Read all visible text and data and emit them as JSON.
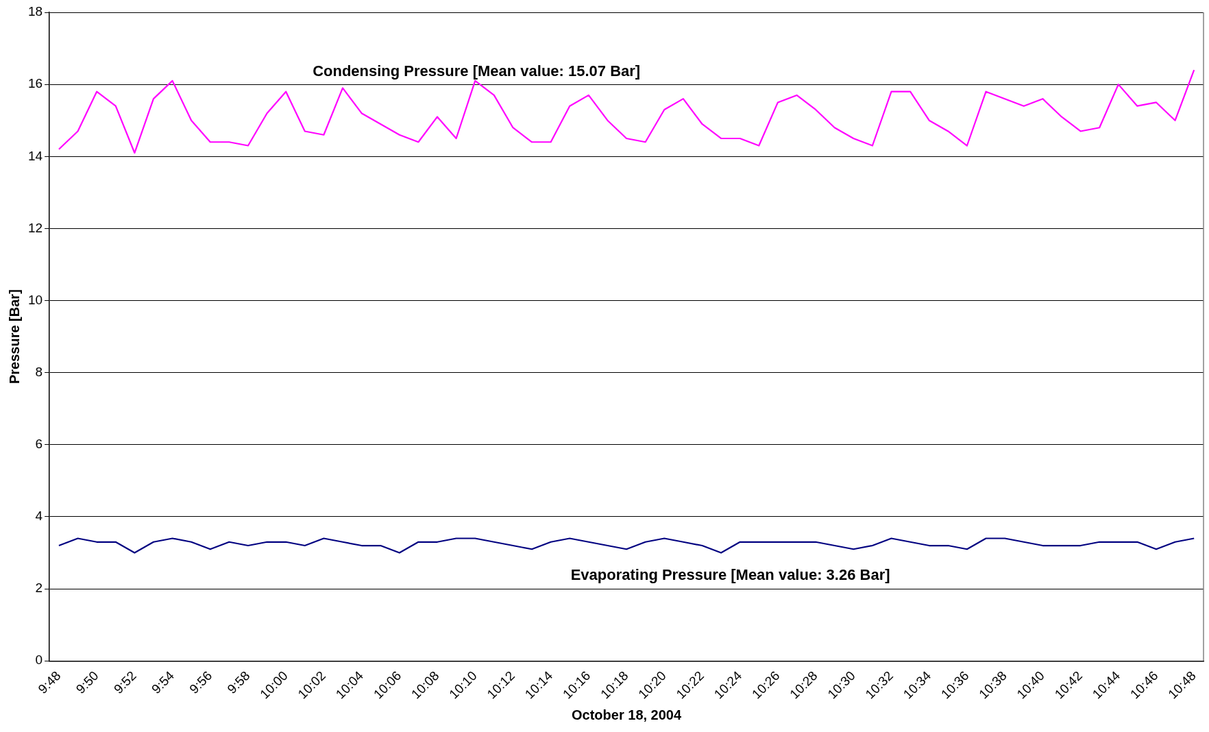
{
  "chart_data": {
    "type": "line",
    "xlabel": "October 18, 2004",
    "ylabel": "Pressure [Bar]",
    "categories": [
      "9:48",
      null,
      "9:50",
      null,
      "9:52",
      null,
      "9:54",
      null,
      "9:56",
      null,
      "9:58",
      null,
      "10:00",
      null,
      "10:02",
      null,
      "10:04",
      null,
      "10:06",
      null,
      "10:08",
      null,
      "10:10",
      null,
      "10:12",
      null,
      "10:14",
      null,
      "10:16",
      null,
      "10:18",
      null,
      "10:20",
      null,
      "10:22",
      null,
      "10:24",
      null,
      "10:26",
      null,
      "10:28",
      null,
      "10:30",
      null,
      "10:32",
      null,
      "10:34",
      null,
      "10:36",
      null,
      "10:38",
      null,
      "10:40",
      null,
      "10:42",
      null,
      "10:44",
      null,
      "10:46",
      null,
      "10:48"
    ],
    "series": [
      {
        "name": "Condensing Pressure [Mean value: 15.07 Bar]",
        "color": "#ff00ff",
        "values": [
          14.2,
          14.7,
          15.8,
          15.4,
          14.1,
          15.6,
          16.1,
          15.0,
          14.4,
          14.4,
          14.3,
          15.2,
          15.8,
          14.7,
          14.6,
          15.9,
          15.2,
          14.9,
          14.6,
          14.4,
          15.1,
          14.5,
          16.1,
          15.7,
          14.8,
          14.4,
          14.4,
          15.4,
          15.7,
          15.0,
          14.5,
          14.4,
          15.3,
          15.6,
          14.9,
          14.5,
          14.5,
          14.3,
          15.5,
          15.7,
          15.3,
          14.8,
          14.5,
          14.3,
          15.8,
          15.8,
          15.0,
          14.7,
          14.3,
          15.8,
          15.6,
          15.4,
          15.6,
          15.1,
          14.7,
          14.8,
          16.0,
          15.4,
          15.5,
          15.0,
          16.4
        ]
      },
      {
        "name": "Evaporating Pressure [Mean value: 3.26 Bar]",
        "color": "#000080",
        "values": [
          3.2,
          3.4,
          3.3,
          3.3,
          3.0,
          3.3,
          3.4,
          3.3,
          3.1,
          3.3,
          3.2,
          3.3,
          3.3,
          3.2,
          3.4,
          3.3,
          3.2,
          3.2,
          3.0,
          3.3,
          3.3,
          3.4,
          3.4,
          3.3,
          3.2,
          3.1,
          3.3,
          3.4,
          3.3,
          3.2,
          3.1,
          3.3,
          3.4,
          3.3,
          3.2,
          3.0,
          3.3,
          3.3,
          3.3,
          3.3,
          3.3,
          3.2,
          3.1,
          3.2,
          3.4,
          3.3,
          3.2,
          3.2,
          3.1,
          3.4,
          3.4,
          3.3,
          3.2,
          3.2,
          3.2,
          3.3,
          3.3,
          3.3,
          3.1,
          3.3,
          3.4
        ]
      }
    ],
    "ylim": [
      0,
      18
    ],
    "yticks": [
      0,
      2,
      4,
      6,
      8,
      10,
      12,
      14,
      16,
      18
    ],
    "grid": "y",
    "legend": false,
    "marker": "none",
    "line_style": "solid"
  }
}
